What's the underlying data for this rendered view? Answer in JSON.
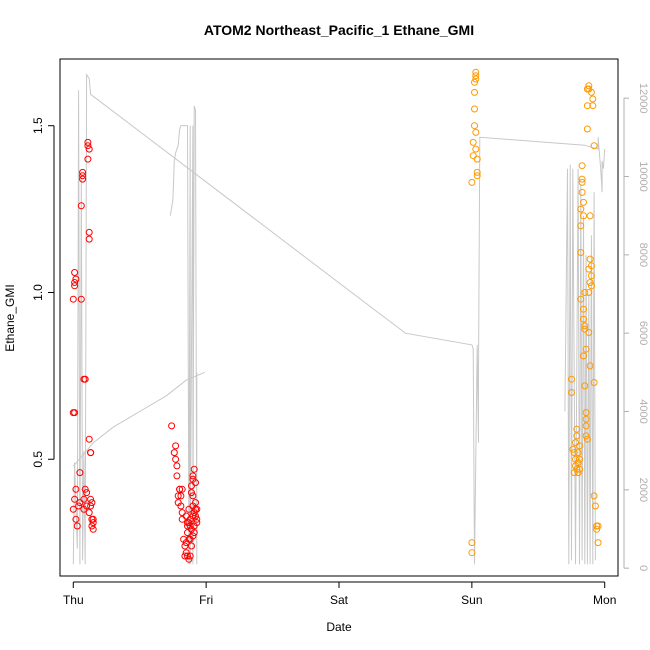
{
  "chart_data": {
    "type": "scatter",
    "title": "ATOM2 Northeast_Pacific_1 Ethane_GMI",
    "xlabel": "Date",
    "ylabel": "Ethane_GMI",
    "x_ticks": [
      "Thu",
      "Fri",
      "Sat",
      "Sun",
      "Mon"
    ],
    "xlim": [
      -0.1,
      4.1
    ],
    "ylim": [
      0.15,
      1.7
    ],
    "y_ticks": [
      0.5,
      1.0,
      1.5
    ],
    "y_tick_labels": [
      "0.5",
      "1.0",
      "1.5"
    ],
    "y2lim": [
      -200,
      13000
    ],
    "y2_ticks": [
      0,
      2000,
      4000,
      6000,
      8000,
      10000,
      12000
    ],
    "y2_tick_labels": [
      "0",
      "2000",
      "4000",
      "6000",
      "8000",
      "10000",
      "12000"
    ],
    "grid": false,
    "series": [
      {
        "marker": "circle-open",
        "color": "#ff0000",
        "points": [
          [
            0.0,
            0.64
          ],
          [
            0.01,
            0.64
          ],
          [
            0.0,
            0.98
          ],
          [
            0.01,
            1.02
          ],
          [
            0.01,
            1.03
          ],
          [
            0.02,
            1.04
          ],
          [
            0.01,
            1.06
          ],
          [
            0.0,
            0.35
          ],
          [
            0.01,
            0.38
          ],
          [
            0.02,
            0.32
          ],
          [
            0.03,
            0.3
          ],
          [
            0.02,
            0.41
          ],
          [
            0.04,
            0.36
          ],
          [
            0.05,
            0.37
          ],
          [
            0.05,
            0.46
          ],
          [
            0.06,
            0.98
          ],
          [
            0.06,
            1.26
          ],
          [
            0.07,
            1.34
          ],
          [
            0.07,
            1.35
          ],
          [
            0.07,
            1.36
          ],
          [
            0.08,
            0.74
          ],
          [
            0.08,
            0.38
          ],
          [
            0.08,
            0.35
          ],
          [
            0.09,
            0.41
          ],
          [
            0.09,
            0.74
          ],
          [
            0.1,
            0.4
          ],
          [
            0.1,
            0.36
          ],
          [
            0.11,
            1.4
          ],
          [
            0.11,
            1.44
          ],
          [
            0.11,
            1.45
          ],
          [
            0.12,
            1.43
          ],
          [
            0.12,
            1.18
          ],
          [
            0.12,
            1.16
          ],
          [
            0.12,
            0.56
          ],
          [
            0.13,
            0.52
          ],
          [
            0.12,
            0.34
          ],
          [
            0.13,
            0.38
          ],
          [
            0.13,
            0.52
          ],
          [
            0.14,
            0.32
          ],
          [
            0.14,
            0.3
          ],
          [
            0.15,
            0.29
          ],
          [
            0.15,
            0.31
          ],
          [
            0.14,
            0.37
          ],
          [
            0.13,
            0.36
          ],
          [
            0.15,
            0.32
          ]
        ]
      },
      {
        "marker": "circle-open",
        "color": "#ff0000",
        "points": [
          [
            0.74,
            0.6
          ],
          [
            0.76,
            0.52
          ],
          [
            0.77,
            0.54
          ],
          [
            0.77,
            0.5
          ],
          [
            0.78,
            0.48
          ],
          [
            0.78,
            0.45
          ],
          [
            0.79,
            0.39
          ],
          [
            0.79,
            0.37
          ],
          [
            0.8,
            0.41
          ],
          [
            0.8,
            0.41
          ],
          [
            0.81,
            0.39
          ],
          [
            0.81,
            0.36
          ],
          [
            0.82,
            0.41
          ],
          [
            0.82,
            0.34
          ],
          [
            0.82,
            0.32
          ],
          [
            0.83,
            0.26
          ],
          [
            0.84,
            0.24
          ],
          [
            0.84,
            0.21
          ],
          [
            0.85,
            0.25
          ],
          [
            0.85,
            0.22
          ],
          [
            0.85,
            0.33
          ],
          [
            0.86,
            0.3
          ],
          [
            0.86,
            0.28
          ],
          [
            0.86,
            0.21
          ],
          [
            0.87,
            0.31
          ],
          [
            0.87,
            0.2
          ],
          [
            0.87,
            0.35
          ],
          [
            0.88,
            0.3
          ],
          [
            0.88,
            0.32
          ],
          [
            0.88,
            0.26
          ],
          [
            0.88,
            0.21
          ],
          [
            0.89,
            0.24
          ],
          [
            0.89,
            0.4
          ],
          [
            0.89,
            0.42
          ],
          [
            0.9,
            0.45
          ],
          [
            0.9,
            0.44
          ],
          [
            0.9,
            0.39
          ],
          [
            0.9,
            0.36
          ],
          [
            0.9,
            0.33
          ],
          [
            0.91,
            0.3
          ],
          [
            0.91,
            0.28
          ],
          [
            0.91,
            0.34
          ],
          [
            0.91,
            0.47
          ],
          [
            0.92,
            0.43
          ],
          [
            0.92,
            0.37
          ],
          [
            0.92,
            0.33
          ],
          [
            0.93,
            0.31
          ],
          [
            0.93,
            0.32
          ],
          [
            0.93,
            0.35
          ],
          [
            0.89,
            0.29
          ],
          [
            0.9,
            0.27
          ],
          [
            0.87,
            0.26
          ],
          [
            0.86,
            0.31
          ],
          [
            0.92,
            0.35
          ]
        ]
      },
      {
        "marker": "circle-open",
        "color": "#ff9900",
        "points": [
          [
            3.0,
            0.22
          ],
          [
            3.0,
            0.25
          ],
          [
            3.0,
            1.33
          ],
          [
            3.01,
            1.41
          ],
          [
            3.01,
            1.45
          ],
          [
            3.02,
            1.5
          ],
          [
            3.02,
            1.55
          ],
          [
            3.02,
            1.6
          ],
          [
            3.02,
            1.63
          ],
          [
            3.03,
            1.64
          ],
          [
            3.03,
            1.65
          ],
          [
            3.03,
            1.66
          ],
          [
            3.03,
            1.43
          ],
          [
            3.03,
            1.48
          ],
          [
            3.04,
            1.35
          ],
          [
            3.04,
            1.36
          ],
          [
            3.04,
            1.4
          ]
        ]
      },
      {
        "marker": "circle-open",
        "color": "#ff9900",
        "points": [
          [
            3.75,
            0.74
          ],
          [
            3.75,
            0.7
          ],
          [
            3.76,
            0.53
          ],
          [
            3.77,
            0.52
          ],
          [
            3.77,
            0.46
          ],
          [
            3.78,
            0.48
          ],
          [
            3.78,
            0.5
          ],
          [
            3.78,
            0.55
          ],
          [
            3.79,
            0.57
          ],
          [
            3.79,
            0.59
          ],
          [
            3.79,
            0.47
          ],
          [
            3.8,
            0.52
          ],
          [
            3.8,
            0.49
          ],
          [
            3.8,
            0.46
          ],
          [
            3.81,
            0.54
          ],
          [
            3.81,
            0.5
          ],
          [
            3.81,
            0.47
          ],
          [
            3.82,
            0.98
          ],
          [
            3.82,
            1.12
          ],
          [
            3.82,
            1.2
          ],
          [
            3.82,
            1.25
          ],
          [
            3.83,
            1.33
          ],
          [
            3.83,
            1.38
          ],
          [
            3.83,
            1.3
          ],
          [
            3.84,
            1.27
          ],
          [
            3.84,
            1.23
          ],
          [
            3.84,
            0.95
          ],
          [
            3.84,
            0.92
          ],
          [
            3.85,
            0.9
          ],
          [
            3.85,
            0.89
          ],
          [
            3.85,
            0.72
          ],
          [
            3.86,
            0.64
          ],
          [
            3.86,
            0.62
          ],
          [
            3.86,
            0.6
          ],
          [
            3.86,
            0.57
          ],
          [
            3.87,
            0.56
          ],
          [
            3.87,
            1.49
          ],
          [
            3.87,
            1.56
          ],
          [
            3.87,
            1.61
          ],
          [
            3.88,
            1.62
          ],
          [
            3.88,
            1.61
          ],
          [
            3.88,
            1.07
          ],
          [
            3.88,
            1.0
          ],
          [
            3.88,
            0.88
          ],
          [
            3.89,
            0.78
          ],
          [
            3.89,
            1.1
          ],
          [
            3.9,
            1.08
          ],
          [
            3.9,
            1.05
          ],
          [
            3.9,
            1.6
          ],
          [
            3.91,
            1.58
          ],
          [
            3.91,
            1.56
          ],
          [
            3.92,
            1.44
          ],
          [
            3.92,
            0.73
          ],
          [
            3.92,
            0.39
          ],
          [
            3.93,
            0.36
          ],
          [
            3.94,
            0.29
          ],
          [
            3.94,
            0.3
          ],
          [
            3.95,
            0.3
          ],
          [
            3.95,
            0.25
          ],
          [
            3.89,
            1.03
          ],
          [
            3.86,
            0.83
          ],
          [
            3.85,
            1.0
          ],
          [
            3.84,
            0.81
          ],
          [
            3.83,
            1.34
          ],
          [
            3.9,
            1.02
          ],
          [
            3.89,
            1.23
          ]
        ]
      },
      {
        "type": "line",
        "color": "#c8c8c8",
        "axis": "right",
        "points": [
          [
            0.0,
            100
          ],
          [
            0.01,
            2700
          ],
          [
            0.03,
            500
          ],
          [
            0.04,
            12200
          ],
          [
            0.05,
            100
          ],
          [
            0.06,
            10000
          ],
          [
            0.07,
            200
          ],
          [
            0.08,
            3000
          ],
          [
            0.09,
            100
          ],
          [
            0.1,
            12600
          ],
          [
            0.12,
            12500
          ],
          [
            0.13,
            12100
          ],
          [
            2.5,
            6000
          ],
          [
            3.0,
            5700
          ],
          [
            3.01,
            5600
          ],
          [
            3.02,
            100
          ],
          [
            3.04,
            5700
          ],
          [
            3.05,
            3200
          ],
          [
            3.05,
            5000
          ],
          [
            3.06,
            11000
          ],
          [
            3.85,
            10800
          ],
          [
            3.95,
            10700
          ],
          [
            3.95,
            11000
          ],
          [
            3.97,
            10200
          ],
          [
            3.98,
            9600
          ],
          [
            3.98,
            10400
          ],
          [
            3.99,
            10200
          ],
          [
            4.0,
            10700
          ]
        ]
      },
      {
        "type": "line",
        "color": "#c8c8c8",
        "axis": "right",
        "points": [
          [
            0.0,
            2600
          ],
          [
            0.05,
            2800
          ],
          [
            0.1,
            3000
          ],
          [
            0.15,
            3200
          ],
          [
            0.3,
            3600
          ],
          [
            0.5,
            4000
          ],
          [
            0.7,
            4400
          ],
          [
            0.85,
            4800
          ],
          [
            0.99,
            5000
          ]
        ]
      },
      {
        "type": "line",
        "color": "#c8c8c8",
        "axis": "right",
        "points": [
          [
            0.73,
            9000
          ],
          [
            0.75,
            9400
          ],
          [
            0.76,
            10400
          ],
          [
            0.77,
            10600
          ],
          [
            0.79,
            10800
          ],
          [
            0.8,
            11200
          ],
          [
            0.81,
            11300
          ],
          [
            0.83,
            11300
          ],
          [
            0.85,
            11300
          ],
          [
            0.86,
            11300
          ],
          [
            0.87,
            100
          ],
          [
            0.88,
            11300
          ],
          [
            0.88,
            100
          ],
          [
            0.9,
            11300
          ],
          [
            0.9,
            100
          ],
          [
            0.91,
            11800
          ],
          [
            0.92,
            11700
          ],
          [
            0.93,
            100
          ],
          [
            0.93,
            5000
          ]
        ]
      },
      {
        "type": "line",
        "color": "#c8c8c8",
        "axis": "right",
        "points": [
          [
            3.7,
            4000
          ],
          [
            3.72,
            10200
          ],
          [
            3.73,
            100
          ],
          [
            3.74,
            10300
          ],
          [
            3.75,
            200
          ],
          [
            3.76,
            10200
          ],
          [
            3.78,
            100
          ],
          [
            3.8,
            10200
          ],
          [
            3.81,
            100
          ],
          [
            3.82,
            9800
          ],
          [
            3.83,
            200
          ],
          [
            3.84,
            9000
          ],
          [
            3.85,
            100
          ],
          [
            3.86,
            8000
          ],
          [
            3.87,
            100
          ],
          [
            3.88,
            7000
          ],
          [
            3.89,
            100
          ],
          [
            3.9,
            8500
          ],
          [
            3.91,
            100
          ],
          [
            3.92,
            9600
          ],
          [
            3.93,
            200
          ]
        ]
      }
    ]
  }
}
